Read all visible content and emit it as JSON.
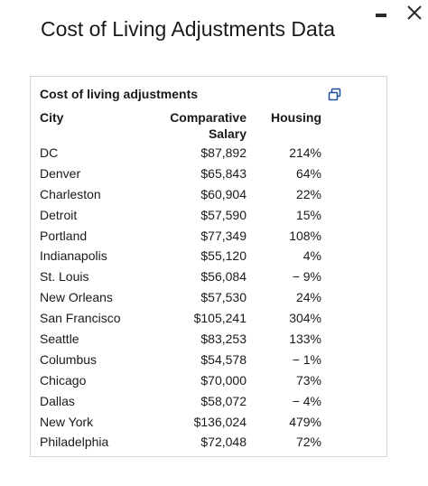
{
  "dialog": {
    "title": "Cost of Living Adjustments Data",
    "minimize_icon": "minimize-icon",
    "close_icon": "close-icon"
  },
  "table": {
    "title": "Cost of living adjustments",
    "copy_icon": "copy-icon",
    "headers": {
      "city": "City",
      "salary_line1": "Comparative",
      "salary_line2": "Salary",
      "housing": "Housing"
    },
    "rows": [
      {
        "city": "DC",
        "salary": "$87,892",
        "housing": "214%"
      },
      {
        "city": "Denver",
        "salary": "$65,843",
        "housing": "64%"
      },
      {
        "city": "Charleston",
        "salary": "$60,904",
        "housing": "22%"
      },
      {
        "city": "Detroit",
        "salary": "$57,590",
        "housing": "15%"
      },
      {
        "city": "Portland",
        "salary": "$77,349",
        "housing": "108%"
      },
      {
        "city": "Indianapolis",
        "salary": "$55,120",
        "housing": "4%"
      },
      {
        "city": "St. Louis",
        "salary": "$56,084",
        "housing": "− 9%"
      },
      {
        "city": "New Orleans",
        "salary": "$57,530",
        "housing": "24%"
      },
      {
        "city": "San Francisco",
        "salary": "$105,241",
        "housing": "304%"
      },
      {
        "city": "Seattle",
        "salary": "$83,253",
        "housing": "133%"
      },
      {
        "city": "Columbus",
        "salary": "$54,578",
        "housing": "− 1%"
      },
      {
        "city": "Chicago",
        "salary": "$70,000",
        "housing": "73%"
      },
      {
        "city": "Dallas",
        "salary": "$58,072",
        "housing": "− 4%"
      },
      {
        "city": "New York",
        "salary": "$136,024",
        "housing": "479%"
      },
      {
        "city": "Philadelphia",
        "salary": "$72,048",
        "housing": "72%"
      }
    ]
  }
}
